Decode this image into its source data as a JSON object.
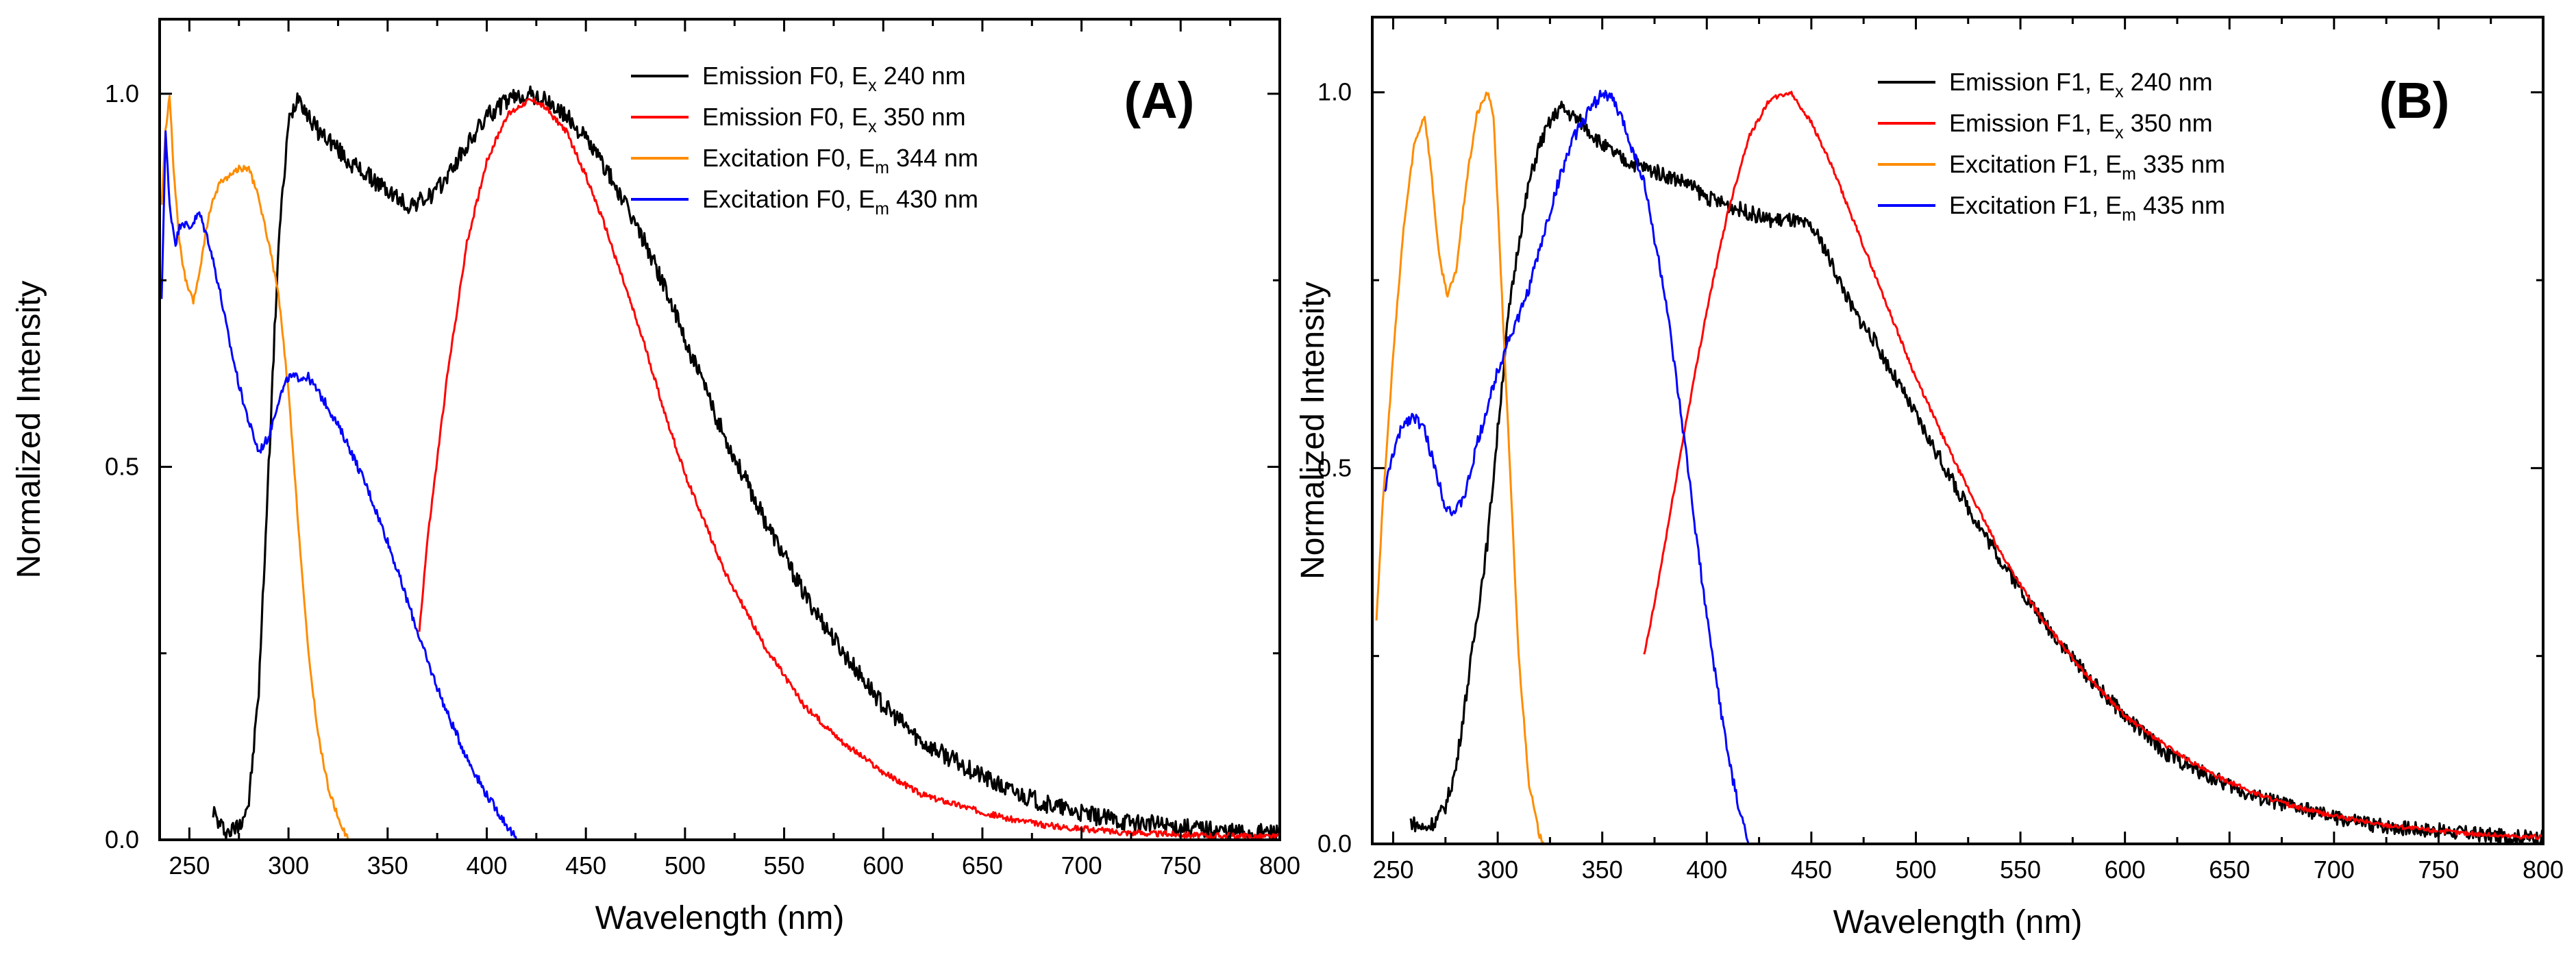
{
  "chart_data": [
    {
      "type": "line",
      "panel_label": "(A)",
      "xlabel": "Wavelength (nm)",
      "ylabel": "Normalized Intensity",
      "xlim": [
        235,
        800
      ],
      "ylim": [
        0,
        1.1
      ],
      "x_ticks": [
        250,
        300,
        350,
        400,
        450,
        500,
        550,
        600,
        650,
        700,
        750,
        800
      ],
      "y_ticks": [
        0.0,
        0.5,
        1.0
      ],
      "legend_position": "top-right",
      "series": [
        {
          "name_main": "Emission F0, E",
          "name_sub": "x",
          "name_rest": " 240 nm",
          "color": "#000000",
          "noise": 0.012,
          "x": [
            262,
            265,
            270,
            275,
            280,
            285,
            290,
            295,
            300,
            305,
            310,
            315,
            320,
            330,
            340,
            350,
            360,
            370,
            375,
            380,
            390,
            400,
            410,
            420,
            430,
            440,
            450,
            460,
            470,
            480,
            490,
            500,
            520,
            540,
            560,
            580,
            600,
            620,
            640,
            660,
            680,
            700,
            720,
            740,
            760,
            780,
            800
          ],
          "y": [
            0.04,
            0.02,
            0.01,
            0.02,
            0.05,
            0.2,
            0.5,
            0.8,
            0.96,
            1.0,
            0.97,
            0.95,
            0.94,
            0.91,
            0.89,
            0.87,
            0.85,
            0.86,
            0.87,
            0.89,
            0.93,
            0.97,
            0.99,
            1.0,
            0.99,
            0.97,
            0.94,
            0.9,
            0.85,
            0.8,
            0.74,
            0.67,
            0.54,
            0.43,
            0.33,
            0.25,
            0.18,
            0.13,
            0.1,
            0.07,
            0.05,
            0.035,
            0.025,
            0.02,
            0.015,
            0.01,
            0.01
          ]
        },
        {
          "name_main": "Emission F0, E",
          "name_sub": "x",
          "name_rest": " 350 nm",
          "color": "#ff0000",
          "noise": 0.004,
          "x": [
            366,
            370,
            380,
            390,
            400,
            410,
            420,
            425,
            430,
            440,
            450,
            460,
            470,
            480,
            490,
            500,
            520,
            540,
            560,
            580,
            600,
            620,
            640,
            660,
            680,
            700,
            720,
            740,
            760,
            780,
            800
          ],
          "y": [
            0.28,
            0.4,
            0.62,
            0.8,
            0.91,
            0.97,
            0.99,
            0.99,
            0.98,
            0.95,
            0.89,
            0.82,
            0.74,
            0.66,
            0.57,
            0.49,
            0.36,
            0.26,
            0.18,
            0.13,
            0.09,
            0.06,
            0.045,
            0.03,
            0.02,
            0.015,
            0.01,
            0.008,
            0.006,
            0.005,
            0.004
          ]
        },
        {
          "name_main": "Excitation F0, E",
          "name_sub": "m",
          "name_rest": " 344 nm",
          "color": "#ff8c00",
          "noise": 0.004,
          "x": [
            236,
            238,
            240,
            242,
            245,
            248,
            252,
            255,
            260,
            265,
            270,
            275,
            280,
            285,
            290,
            295,
            300,
            305,
            310,
            315,
            320,
            325,
            330
          ],
          "y": [
            0.85,
            0.95,
            1.0,
            0.9,
            0.8,
            0.75,
            0.72,
            0.76,
            0.84,
            0.88,
            0.89,
            0.9,
            0.9,
            0.86,
            0.8,
            0.73,
            0.6,
            0.42,
            0.25,
            0.14,
            0.07,
            0.03,
            0.0
          ]
        },
        {
          "name_main": "Excitation F0, E",
          "name_sub": "m",
          "name_rest": " 430 nm",
          "color": "#0000ff",
          "noise": 0.006,
          "x": [
            236,
            238,
            240,
            243,
            246,
            250,
            255,
            260,
            265,
            270,
            275,
            280,
            285,
            290,
            295,
            300,
            305,
            310,
            315,
            320,
            330,
            340,
            350,
            360,
            370,
            380,
            390,
            400,
            410,
            415
          ],
          "y": [
            0.72,
            0.95,
            0.85,
            0.8,
            0.83,
            0.82,
            0.84,
            0.8,
            0.74,
            0.67,
            0.61,
            0.56,
            0.52,
            0.54,
            0.59,
            0.62,
            0.62,
            0.62,
            0.6,
            0.58,
            0.53,
            0.47,
            0.4,
            0.32,
            0.24,
            0.17,
            0.11,
            0.06,
            0.02,
            0.0
          ]
        }
      ]
    },
    {
      "type": "line",
      "panel_label": "(B)",
      "xlabel": "Wavelength (nm)",
      "ylabel": "Normalized Intensity",
      "xlim": [
        240,
        800
      ],
      "ylim": [
        0,
        1.1
      ],
      "x_ticks": [
        250,
        300,
        350,
        400,
        450,
        500,
        550,
        600,
        650,
        700,
        750,
        800
      ],
      "y_ticks": [
        0.0,
        0.5,
        1.0
      ],
      "legend_position": "top-right",
      "series": [
        {
          "name_main": "Emission F1, E",
          "name_sub": "x",
          "name_rest": " 240 nm",
          "color": "#000000",
          "noise": 0.01,
          "x": [
            258,
            265,
            270,
            275,
            280,
            285,
            290,
            295,
            300,
            305,
            310,
            315,
            320,
            325,
            330,
            340,
            350,
            360,
            370,
            380,
            390,
            400,
            410,
            420,
            430,
            440,
            450,
            455,
            460,
            470,
            480,
            490,
            500,
            520,
            540,
            560,
            580,
            600,
            620,
            640,
            660,
            680,
            700,
            720,
            740,
            760,
            780,
            800
          ],
          "y": [
            0.03,
            0.02,
            0.03,
            0.05,
            0.1,
            0.2,
            0.3,
            0.4,
            0.55,
            0.7,
            0.8,
            0.88,
            0.93,
            0.96,
            0.98,
            0.96,
            0.93,
            0.91,
            0.9,
            0.89,
            0.88,
            0.86,
            0.85,
            0.84,
            0.83,
            0.83,
            0.82,
            0.8,
            0.77,
            0.71,
            0.67,
            0.62,
            0.57,
            0.47,
            0.38,
            0.3,
            0.23,
            0.17,
            0.12,
            0.09,
            0.065,
            0.05,
            0.035,
            0.025,
            0.02,
            0.015,
            0.01,
            0.008
          ]
        },
        {
          "name_main": "Emission F1, E",
          "name_sub": "x",
          "name_rest": " 350 nm",
          "color": "#ff0000",
          "noise": 0.003,
          "x": [
            370,
            375,
            380,
            390,
            400,
            410,
            420,
            430,
            440,
            450,
            460,
            470,
            480,
            490,
            500,
            520,
            540,
            560,
            580,
            600,
            620,
            640,
            660,
            680,
            700,
            720,
            740,
            760,
            780,
            800
          ],
          "y": [
            0.25,
            0.32,
            0.4,
            0.56,
            0.71,
            0.84,
            0.94,
            0.99,
            1.0,
            0.96,
            0.9,
            0.83,
            0.76,
            0.69,
            0.62,
            0.5,
            0.39,
            0.3,
            0.23,
            0.17,
            0.13,
            0.095,
            0.07,
            0.05,
            0.037,
            0.027,
            0.02,
            0.015,
            0.011,
            0.009
          ]
        },
        {
          "name_main": "Excitation F1, E",
          "name_sub": "m",
          "name_rest": " 335 nm",
          "color": "#ff8c00",
          "noise": 0.004,
          "x": [
            242,
            245,
            250,
            255,
            260,
            265,
            268,
            272,
            276,
            280,
            285,
            290,
            295,
            298,
            300,
            305,
            310,
            315,
            320,
            323
          ],
          "y": [
            0.3,
            0.45,
            0.65,
            0.82,
            0.93,
            0.97,
            0.9,
            0.78,
            0.73,
            0.76,
            0.88,
            0.97,
            1.0,
            0.97,
            0.85,
            0.55,
            0.25,
            0.08,
            0.01,
            0.0
          ]
        },
        {
          "name_main": "Excitation F1, E",
          "name_sub": "m",
          "name_rest": " 435 nm",
          "color": "#0000ff",
          "noise": 0.008,
          "x": [
            246,
            250,
            255,
            260,
            265,
            270,
            275,
            280,
            285,
            290,
            295,
            300,
            305,
            310,
            315,
            320,
            325,
            330,
            335,
            340,
            345,
            350,
            355,
            360,
            370,
            380,
            390,
            400,
            410,
            415,
            420
          ],
          "y": [
            0.47,
            0.52,
            0.56,
            0.57,
            0.55,
            0.5,
            0.45,
            0.44,
            0.47,
            0.53,
            0.58,
            0.63,
            0.67,
            0.7,
            0.74,
            0.79,
            0.84,
            0.89,
            0.93,
            0.96,
            0.98,
            1.0,
            0.99,
            0.96,
            0.88,
            0.73,
            0.52,
            0.3,
            0.12,
            0.05,
            0.0
          ]
        }
      ]
    }
  ]
}
